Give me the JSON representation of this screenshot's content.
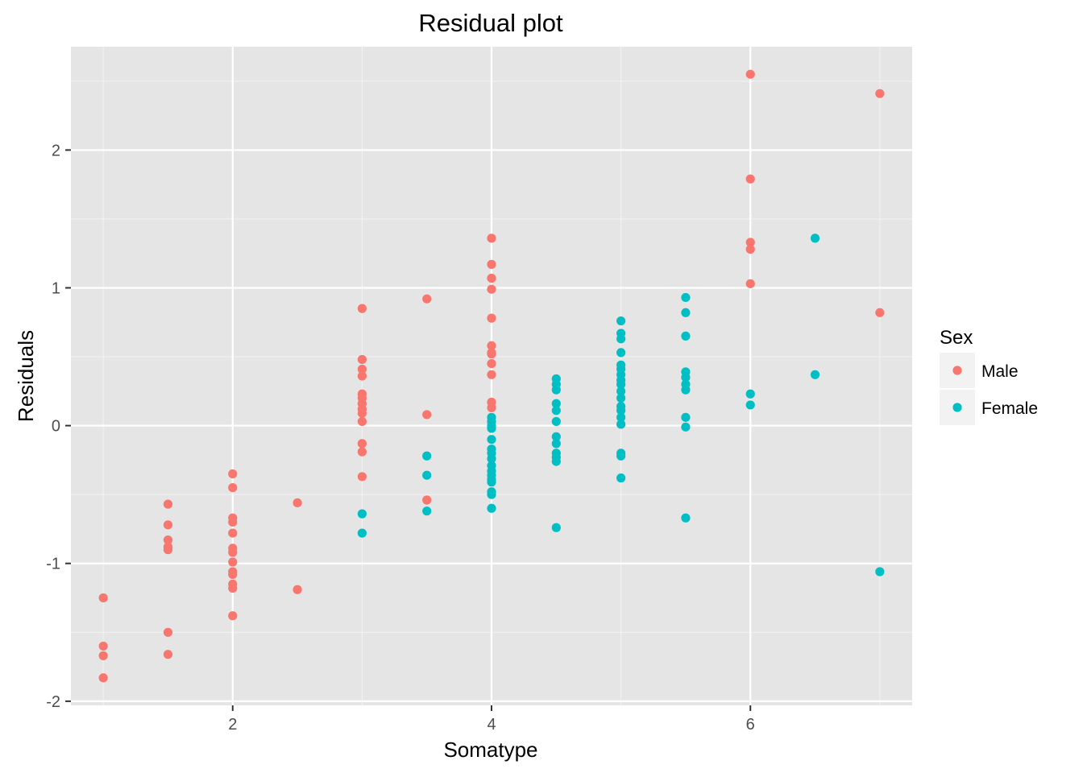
{
  "colors": {
    "panel_bg": "#E5E5E5",
    "grid_major": "#FFFFFF",
    "grid_minor": "#F2F2F2",
    "tick": "#333333",
    "tick_label": "#4D4D4D",
    "legend_key_bg": "#F2F2F2"
  },
  "chart_data": {
    "type": "scatter",
    "title": "Residual plot",
    "xlabel": "Somatype",
    "ylabel": "Residuals",
    "xlim": [
      0.75,
      7.25
    ],
    "ylim": [
      -2.03,
      2.75
    ],
    "x_ticks": [
      2,
      4,
      6
    ],
    "x_tick_labels": [
      "2",
      "4",
      "6"
    ],
    "y_ticks": [
      -2,
      -1,
      0,
      1,
      2
    ],
    "y_tick_labels": [
      "-2",
      "-1",
      "0",
      "1",
      "2"
    ],
    "x_minor_ticks": [
      1,
      3,
      5,
      7
    ],
    "y_minor_ticks": [
      -1.5,
      -0.5,
      0.5,
      1.5,
      2.5
    ],
    "grid": true,
    "legend": {
      "title": "Sex",
      "position": "right"
    },
    "series": [
      {
        "name": "Male",
        "color": "#F8766D",
        "points": [
          [
            1,
            -1.25
          ],
          [
            1,
            -1.6
          ],
          [
            1,
            -1.67
          ],
          [
            1,
            -1.83
          ],
          [
            1.5,
            -0.57
          ],
          [
            1.5,
            -0.72
          ],
          [
            1.5,
            -0.83
          ],
          [
            1.5,
            -0.88
          ],
          [
            1.5,
            -0.9
          ],
          [
            1.5,
            -1.5
          ],
          [
            1.5,
            -1.66
          ],
          [
            2,
            -0.35
          ],
          [
            2,
            -0.45
          ],
          [
            2,
            -0.67
          ],
          [
            2,
            -0.7
          ],
          [
            2,
            -0.78
          ],
          [
            2,
            -0.89
          ],
          [
            2,
            -0.92
          ],
          [
            2,
            -0.99
          ],
          [
            2,
            -1.06
          ],
          [
            2,
            -1.08
          ],
          [
            2,
            -1.15
          ],
          [
            2,
            -1.18
          ],
          [
            2,
            -1.38
          ],
          [
            2.5,
            -0.56
          ],
          [
            2.5,
            -1.19
          ],
          [
            3,
            0.85
          ],
          [
            3,
            0.48
          ],
          [
            3,
            0.41
          ],
          [
            3,
            0.36
          ],
          [
            3,
            0.23
          ],
          [
            3,
            0.2
          ],
          [
            3,
            0.16
          ],
          [
            3,
            0.12
          ],
          [
            3,
            0.09
          ],
          [
            3,
            0.03
          ],
          [
            3,
            -0.13
          ],
          [
            3,
            -0.19
          ],
          [
            3,
            -0.37
          ],
          [
            3.5,
            0.92
          ],
          [
            3.5,
            0.08
          ],
          [
            3.5,
            -0.54
          ],
          [
            4,
            1.36
          ],
          [
            4,
            1.17
          ],
          [
            4,
            1.07
          ],
          [
            4,
            0.99
          ],
          [
            4,
            0.78
          ],
          [
            4,
            0.58
          ],
          [
            4,
            0.53
          ],
          [
            4,
            0.52
          ],
          [
            4,
            0.45
          ],
          [
            4,
            0.37
          ],
          [
            4,
            0.17
          ],
          [
            4,
            0.13
          ],
          [
            6,
            2.55
          ],
          [
            6,
            1.79
          ],
          [
            6,
            1.33
          ],
          [
            6,
            1.28
          ],
          [
            6,
            1.03
          ],
          [
            7,
            2.41
          ],
          [
            7,
            0.82
          ]
        ]
      },
      {
        "name": "Female",
        "color": "#00BFC4",
        "points": [
          [
            3,
            -0.64
          ],
          [
            3,
            -0.78
          ],
          [
            3.5,
            -0.22
          ],
          [
            3.5,
            -0.36
          ],
          [
            3.5,
            -0.62
          ],
          [
            4,
            0.06
          ],
          [
            4,
            0.03
          ],
          [
            4,
            0.0
          ],
          [
            4,
            -0.02
          ],
          [
            4,
            -0.1
          ],
          [
            4,
            -0.17
          ],
          [
            4,
            -0.2
          ],
          [
            4,
            -0.24
          ],
          [
            4,
            -0.29
          ],
          [
            4,
            -0.33
          ],
          [
            4,
            -0.36
          ],
          [
            4,
            -0.39
          ],
          [
            4,
            -0.41
          ],
          [
            4,
            -0.48
          ],
          [
            4,
            -0.5
          ],
          [
            4,
            -0.6
          ],
          [
            4.5,
            0.34
          ],
          [
            4.5,
            0.3
          ],
          [
            4.5,
            0.26
          ],
          [
            4.5,
            0.16
          ],
          [
            4.5,
            0.11
          ],
          [
            4.5,
            0.03
          ],
          [
            4.5,
            -0.08
          ],
          [
            4.5,
            -0.13
          ],
          [
            4.5,
            -0.2
          ],
          [
            4.5,
            -0.23
          ],
          [
            4.5,
            -0.26
          ],
          [
            4.5,
            -0.74
          ],
          [
            5,
            0.76
          ],
          [
            5,
            0.67
          ],
          [
            5,
            0.63
          ],
          [
            5,
            0.53
          ],
          [
            5,
            0.44
          ],
          [
            5,
            0.41
          ],
          [
            5,
            0.37
          ],
          [
            5,
            0.33
          ],
          [
            5,
            0.3
          ],
          [
            5,
            0.25
          ],
          [
            5,
            0.2
          ],
          [
            5,
            0.14
          ],
          [
            5,
            0.11
          ],
          [
            5,
            0.06
          ],
          [
            5,
            0.01
          ],
          [
            5,
            -0.2
          ],
          [
            5,
            -0.22
          ],
          [
            5,
            -0.38
          ],
          [
            5.5,
            0.93
          ],
          [
            5.5,
            0.82
          ],
          [
            5.5,
            0.65
          ],
          [
            5.5,
            0.39
          ],
          [
            5.5,
            0.35
          ],
          [
            5.5,
            0.3
          ],
          [
            5.5,
            0.26
          ],
          [
            5.5,
            0.06
          ],
          [
            5.5,
            -0.01
          ],
          [
            5.5,
            -0.67
          ],
          [
            6,
            0.23
          ],
          [
            6,
            0.15
          ],
          [
            6.5,
            1.36
          ],
          [
            6.5,
            0.37
          ],
          [
            7,
            -1.06
          ]
        ]
      }
    ]
  }
}
